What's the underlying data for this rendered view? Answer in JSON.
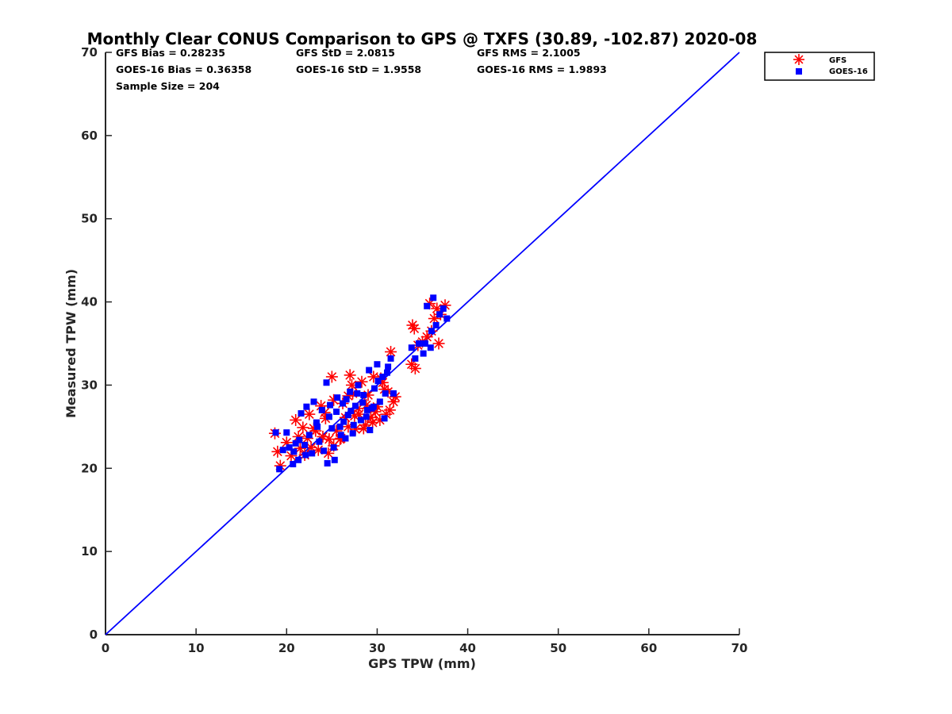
{
  "chart_data": {
    "type": "scatter",
    "title": "Monthly Clear CONUS Comparison to GPS @ TXFS (30.89, -102.87) 2020-08",
    "xlabel": "GPS TPW (mm)",
    "ylabel": "Measured TPW (mm)",
    "xlim": [
      0,
      70
    ],
    "ylim": [
      0,
      70
    ],
    "xticks": [
      "0",
      "10",
      "20",
      "30",
      "40",
      "50",
      "60",
      "70"
    ],
    "yticks": [
      "0",
      "10",
      "20",
      "30",
      "40",
      "50",
      "60",
      "70"
    ],
    "grid": false,
    "legend_position": "top-right",
    "stats": {
      "gfs_bias": "GFS Bias = 0.28235",
      "gfs_std": "GFS StD = 2.0815",
      "gfs_rms": "GFS RMS = 2.1005",
      "goes_bias": "GOES-16 Bias = 0.36358",
      "goes_std": "GOES-16 StD = 1.9558",
      "goes_rms": "GOES-16 RMS = 1.9893",
      "sample_size": "Sample Size = 204"
    },
    "reference_line": {
      "x": [
        0,
        70
      ],
      "y": [
        0,
        70
      ],
      "color": "#0000ff"
    },
    "series": [
      {
        "name": "GFS",
        "marker": "asterisk",
        "color": "#ff0000",
        "x": [
          18.7,
          19.0,
          19.3,
          20.0,
          20.5,
          21.0,
          21.5,
          21.8,
          22.0,
          22.5,
          22.3,
          23.0,
          23.5,
          23.8,
          24.0,
          24.3,
          24.6,
          25.0,
          25.2,
          25.5,
          25.9,
          26.2,
          26.5,
          26.8,
          27.0,
          27.3,
          27.6,
          27.9,
          28.0,
          28.3,
          28.7,
          29.0,
          29.3,
          29.6,
          30.0,
          30.3,
          30.6,
          31.0,
          31.2,
          31.5,
          31.8,
          32.0,
          31.4,
          30.8,
          29.5,
          28.5,
          27.5,
          26.0,
          25.2,
          24.7,
          24.2,
          23.2,
          22.7,
          21.3,
          33.9,
          34.1,
          34.2,
          33.8,
          34.5,
          35.0,
          35.5,
          36.0,
          36.3,
          36.6,
          37.0,
          37.5,
          36.8,
          35.8,
          26.8,
          28.8,
          27.2,
          29.8,
          30.4
        ],
        "y": [
          24.2,
          22.0,
          20.3,
          23.1,
          21.5,
          25.8,
          22.4,
          24.9,
          21.6,
          26.5,
          23.6,
          24.8,
          22.2,
          27.5,
          23.8,
          26.0,
          21.8,
          31.0,
          28.2,
          24.5,
          23.5,
          27.8,
          26.1,
          25.0,
          31.2,
          29.0,
          24.7,
          27.2,
          26.5,
          30.4,
          25.2,
          28.8,
          26.1,
          31.0,
          27.4,
          25.8,
          30.3,
          26.5,
          29.2,
          34.0,
          28.0,
          28.6,
          27.0,
          29.5,
          25.5,
          24.8,
          26.3,
          23.6,
          22.7,
          23.5,
          26.7,
          24.5,
          22.5,
          23.8,
          37.2,
          36.8,
          32.0,
          32.5,
          34.8,
          35.2,
          35.8,
          36.5,
          38.0,
          39.2,
          38.5,
          39.6,
          35.0,
          39.8,
          28.7,
          27.6,
          30.0,
          26.8,
          30.8
        ]
      },
      {
        "name": "GOES-16",
        "marker": "square",
        "color": "#0000ff",
        "x": [
          18.8,
          19.2,
          19.6,
          20.0,
          20.3,
          20.7,
          21.0,
          21.3,
          21.6,
          22.0,
          22.2,
          22.5,
          22.8,
          23.0,
          23.3,
          23.6,
          23.9,
          24.1,
          24.4,
          24.7,
          25.0,
          25.3,
          25.6,
          25.9,
          26.2,
          26.5,
          26.8,
          27.0,
          27.3,
          27.6,
          27.9,
          28.2,
          28.5,
          28.8,
          29.1,
          29.4,
          29.7,
          30.0,
          30.3,
          30.6,
          30.9,
          31.2,
          31.5,
          31.8,
          24.5,
          25.2,
          26.0,
          27.4,
          28.9,
          30.1,
          23.4,
          22.1,
          21.4,
          20.8,
          24.8,
          25.5,
          26.6,
          27.8,
          29.2,
          30.8,
          33.8,
          34.2,
          34.6,
          35.1,
          35.5,
          35.9,
          36.2,
          36.5,
          36.9,
          37.3,
          37.7,
          36.0,
          35.3,
          26.3,
          27.1,
          28.4,
          29.6,
          31.1
        ],
        "y": [
          24.3,
          19.9,
          22.2,
          24.3,
          22.5,
          20.5,
          23.0,
          21.0,
          26.6,
          22.8,
          27.4,
          24.0,
          21.8,
          28.0,
          25.5,
          23.2,
          27.0,
          22.1,
          30.3,
          26.2,
          24.8,
          21.0,
          28.5,
          25.0,
          27.8,
          23.6,
          26.4,
          29.2,
          24.2,
          27.5,
          30.0,
          25.8,
          28.8,
          26.2,
          31.8,
          27.2,
          29.6,
          32.5,
          28.0,
          31.0,
          29.0,
          32.2,
          33.2,
          29.0,
          20.6,
          22.5,
          24.0,
          25.2,
          27.0,
          30.5,
          25.0,
          21.6,
          23.4,
          22.0,
          27.6,
          26.8,
          28.3,
          29.0,
          24.6,
          26.0,
          34.5,
          33.2,
          35.0,
          33.8,
          39.5,
          34.5,
          40.5,
          37.2,
          38.5,
          39.2,
          38.0,
          36.5,
          35.0,
          25.6,
          26.9,
          27.9,
          27.4,
          31.5
        ]
      }
    ]
  }
}
